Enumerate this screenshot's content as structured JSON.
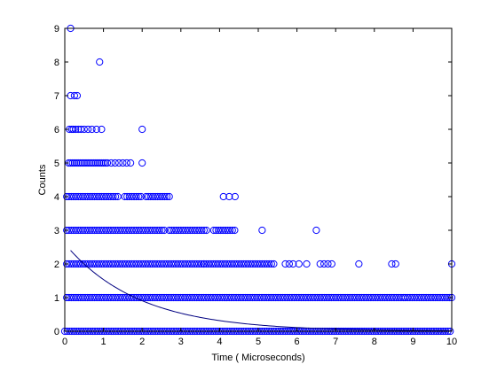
{
  "chart_data": {
    "type": "scatter",
    "title": "",
    "xlabel": "Time ( Microseconds)",
    "ylabel": "Counts",
    "xlim": [
      0,
      10
    ],
    "ylim": [
      0,
      9
    ],
    "xticks": [
      "0",
      "1",
      "2",
      "3",
      "4",
      "5",
      "6",
      "7",
      "8",
      "9",
      "10"
    ],
    "yticks": [
      "0",
      "1",
      "2",
      "3",
      "4",
      "5",
      "6",
      "7",
      "8",
      "9"
    ],
    "grid": false,
    "legend": "none",
    "marker": "open-circle",
    "color": "#0000ff",
    "series": [
      {
        "type": "scatter",
        "points_by_count": {
          "9": [
            0.15
          ],
          "8": [
            0.9
          ],
          "7": [
            0.15,
            0.25,
            0.32
          ],
          "6": [
            0.12,
            0.18,
            0.22,
            0.28,
            0.35,
            0.42,
            0.5,
            0.6,
            0.7,
            0.82,
            0.95,
            2.0
          ],
          "5": [
            0.1,
            0.15,
            0.2,
            0.25,
            0.3,
            0.35,
            0.4,
            0.45,
            0.5,
            0.55,
            0.6,
            0.65,
            0.7,
            0.75,
            0.8,
            0.85,
            0.9,
            0.95,
            1.0,
            1.05,
            1.1,
            1.2,
            1.3,
            1.4,
            1.5,
            1.6,
            1.7,
            2.0
          ],
          "4": [
            4.1,
            4.25,
            4.4
          ],
          "3": [
            5.1,
            6.5
          ],
          "2": [
            5.7,
            5.8,
            5.9,
            6.05,
            6.25,
            6.6,
            6.7,
            6.8,
            6.9,
            7.6,
            8.45,
            8.55,
            10.0
          ],
          "1": [],
          "0": []
        },
        "dense_ranges_by_count": {
          "4": [
            [
              0.05,
              1.4
            ],
            [
              1.55,
              2.0
            ],
            [
              2.1,
              2.7
            ]
          ],
          "3": [
            [
              0.05,
              2.6
            ],
            [
              2.7,
              3.7
            ],
            [
              3.85,
              4.4
            ]
          ],
          "2": [
            [
              0.05,
              3.6
            ],
            [
              3.6,
              5.4
            ]
          ],
          "1": [
            [
              0.05,
              8.8
            ],
            [
              8.8,
              10.0
            ]
          ],
          "0": [
            [
              0.0,
              10.0
            ]
          ]
        }
      },
      {
        "type": "line",
        "function": "2.6 * exp(-x / 1.9)",
        "x_range": [
          0.15,
          10.0
        ]
      }
    ]
  }
}
